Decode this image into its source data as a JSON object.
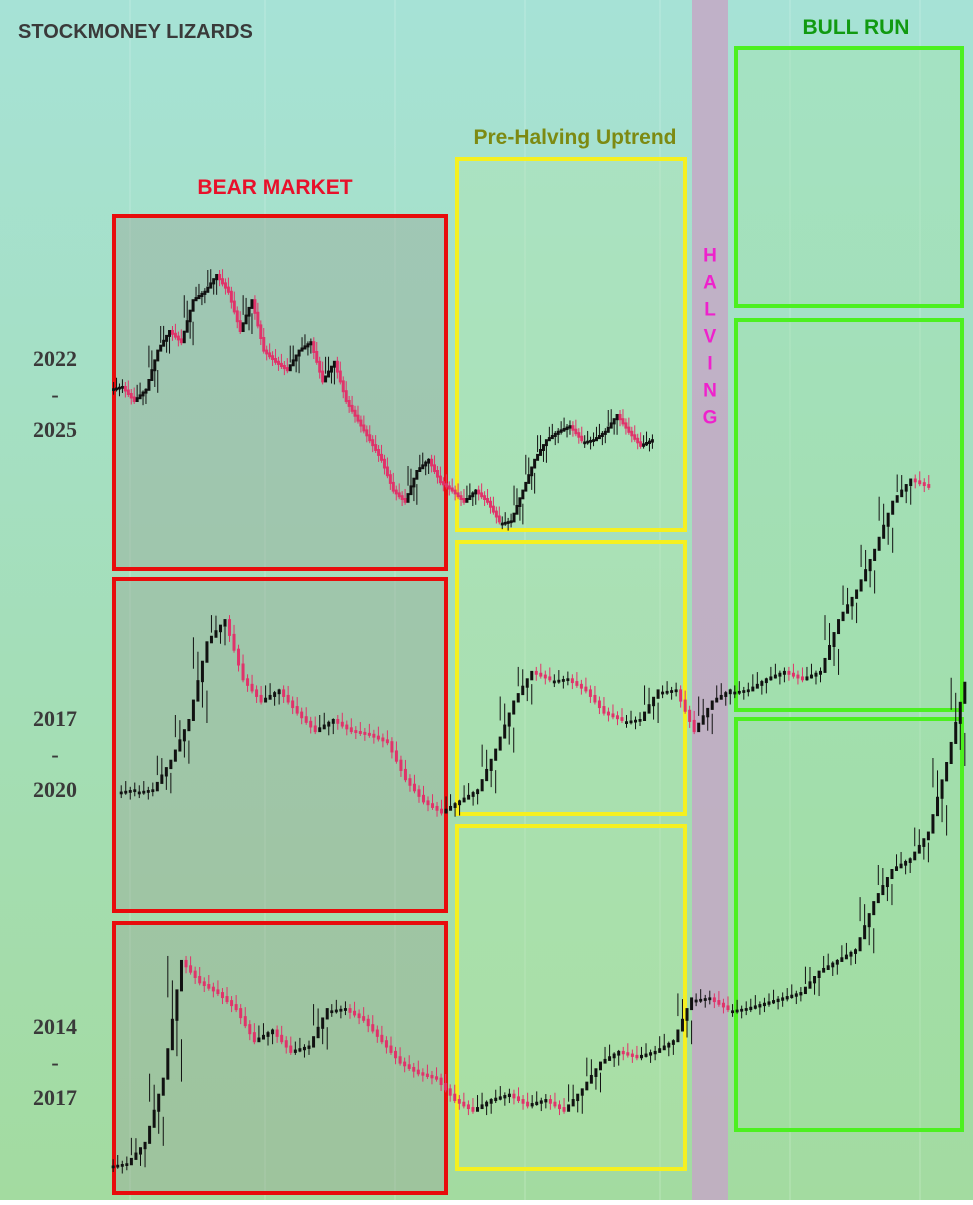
{
  "title": "STOCKMONEY LIZARDS",
  "phases": {
    "bear": "BEAR MARKET",
    "pre": "Pre-Halving Uptrend",
    "halving": "HALVING",
    "bull": "BULL RUN"
  },
  "rows": [
    [
      "2022",
      "-",
      "2025"
    ],
    [
      "2017",
      "-",
      "2020"
    ],
    [
      "2014",
      "-",
      "2017"
    ]
  ],
  "chart_data": [
    {
      "type": "candle",
      "ylim": [
        0,
        100
      ],
      "up_color": "#111111",
      "down_color": "#e0336a",
      "values": [
        55,
        50,
        54,
        68,
        75,
        71,
        86,
        89,
        95,
        89,
        75,
        86,
        68,
        64,
        61,
        68,
        71,
        57,
        64,
        50,
        43,
        36,
        29,
        18,
        14,
        25,
        29,
        21,
        18,
        14,
        18,
        14,
        7,
        7,
        18,
        29,
        36,
        39,
        41,
        36,
        36,
        39,
        45,
        39,
        34,
        36
      ]
    },
    {
      "type": "candle",
      "ylim": [
        0,
        100
      ],
      "up_color": "#111111",
      "down_color": "#e0336a",
      "values": [
        11,
        11,
        19,
        30,
        51,
        57,
        41,
        35,
        38,
        32,
        27,
        30,
        27,
        26,
        24,
        14,
        8,
        5,
        8,
        11,
        22,
        35,
        43,
        41,
        41,
        38,
        32,
        30,
        30,
        38,
        38,
        27,
        35,
        38,
        38,
        41,
        43,
        41,
        43,
        57,
        65,
        76,
        89,
        95,
        93
      ]
    },
    {
      "type": "candle",
      "ylim": [
        0,
        100
      ],
      "up_color": "#111111",
      "down_color": "#e0336a",
      "values": [
        5,
        9,
        21,
        43,
        39,
        37,
        34,
        28,
        30,
        26,
        27,
        34,
        34,
        32,
        28,
        24,
        22,
        21,
        17,
        15,
        17,
        18,
        16,
        17,
        15,
        19,
        24,
        26,
        25,
        26,
        28,
        36,
        36,
        34,
        34,
        35,
        36,
        37,
        41,
        43,
        45,
        54,
        60,
        62,
        67,
        80,
        95
      ]
    }
  ]
}
